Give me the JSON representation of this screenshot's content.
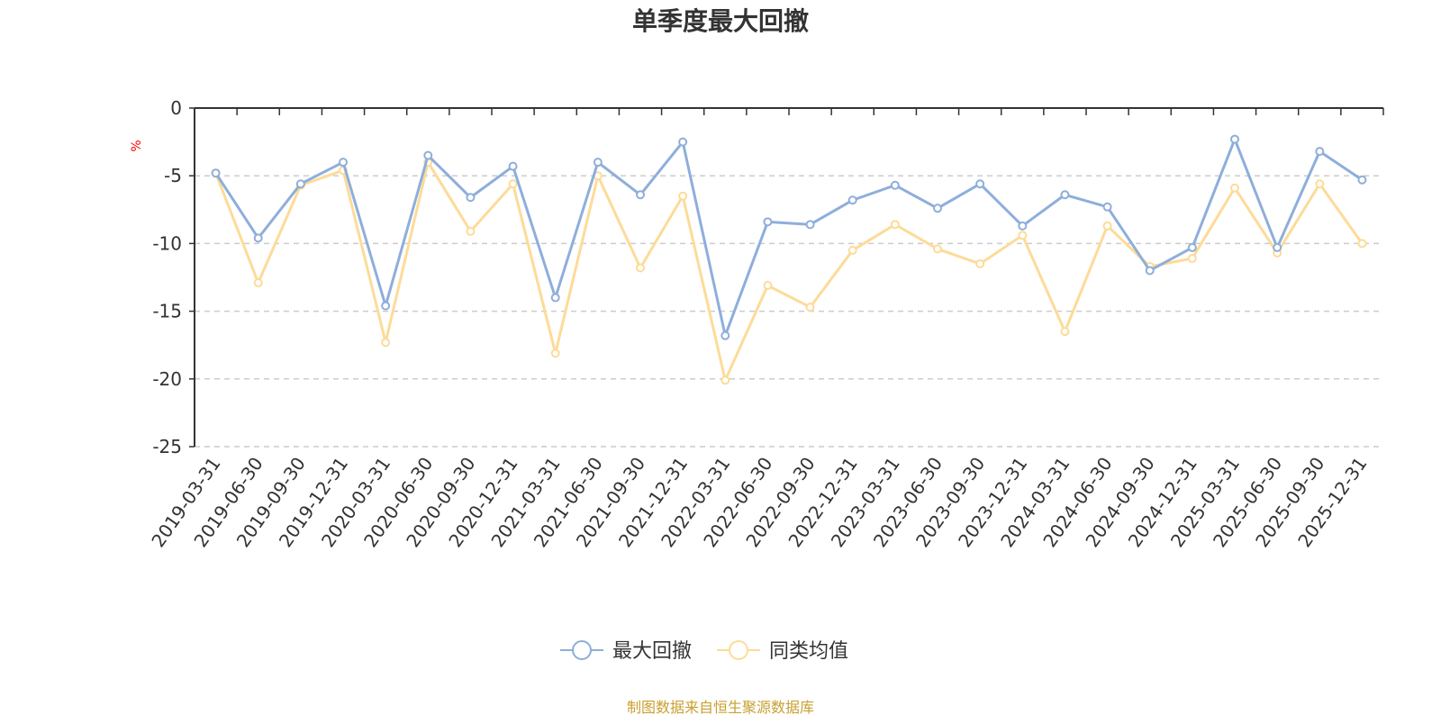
{
  "chart_data": {
    "type": "line",
    "title": "单季度最大回撤",
    "unit": "%",
    "ylim": [
      -25,
      0
    ],
    "yticks": [
      0,
      -5,
      -10,
      -15,
      -20,
      -25
    ],
    "grid": true,
    "legend_position": "bottom-center",
    "categories": [
      "2019-03-31",
      "2019-06-30",
      "2019-09-30",
      "2019-12-31",
      "2020-03-31",
      "2020-06-30",
      "2020-09-30",
      "2020-12-31",
      "2021-03-31",
      "2021-06-30",
      "2021-09-30",
      "2021-12-31",
      "2022-03-31",
      "2022-06-30",
      "2022-09-30",
      "2022-12-31",
      "2023-03-31",
      "2023-06-30",
      "2023-09-30",
      "2023-12-31",
      "2024-03-31",
      "2024-06-30",
      "2024-09-30",
      "2024-12-31",
      "2025-03-31",
      "2025-06-30",
      "2025-09-30",
      "2025-12-31"
    ],
    "series": [
      {
        "name": "最大回撤",
        "color": "#8eaedb",
        "values": [
          -4.8,
          -9.6,
          -5.6,
          -4.0,
          -14.6,
          -3.5,
          -6.6,
          -4.3,
          -14.0,
          -4.0,
          -6.4,
          -2.5,
          -16.8,
          -8.4,
          -8.6,
          -6.8,
          -5.7,
          -7.4,
          -5.6,
          -8.7,
          -6.4,
          -7.3,
          -12.0,
          -10.3,
          -2.3,
          -10.3,
          -3.2,
          -5.3
        ]
      },
      {
        "name": "同类均值",
        "color": "#fddb98",
        "values": [
          -4.8,
          -12.9,
          -5.7,
          -4.6,
          -17.3,
          -4.0,
          -9.1,
          -5.6,
          -18.1,
          -5.0,
          -11.8,
          -6.5,
          -20.1,
          -13.1,
          -14.7,
          -10.5,
          -8.6,
          -10.4,
          -11.5,
          -9.4,
          -16.5,
          -8.7,
          -11.7,
          -11.1,
          -5.9,
          -10.7,
          -5.6,
          -10.0
        ]
      }
    ]
  },
  "source": "制图数据来自恒生聚源数据库"
}
